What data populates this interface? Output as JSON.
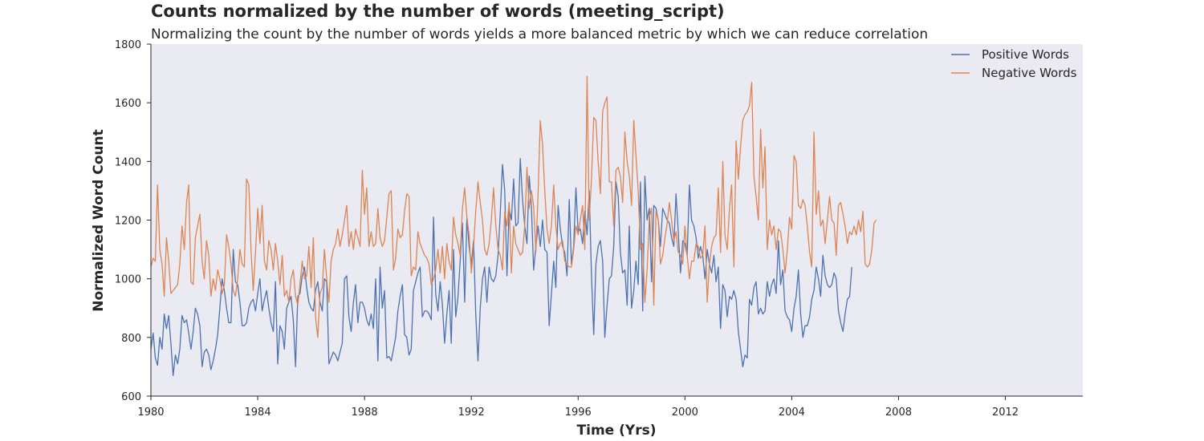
{
  "chart_data": {
    "type": "line",
    "title": "Counts normalized by the number of words (meeting_script)",
    "subtitle": "Normalizing the count by the number of words yields a more balanced metric by which we can reduce correlation",
    "xlabel": "Time (Yrs)",
    "ylabel": "Normalized Word Count",
    "xlim": [
      1980.0,
      2014.9
    ],
    "ylim": [
      600,
      1800
    ],
    "x_ticks": [
      1980,
      1984,
      1988,
      1992,
      1996,
      2000,
      2004,
      2008,
      2012
    ],
    "x_tick_labels": [
      "1980",
      "1984",
      "1988",
      "1992",
      "1996",
      "2000",
      "2004",
      "2008",
      "2012"
    ],
    "y_ticks": [
      600,
      800,
      1000,
      1200,
      1400,
      1600,
      1800
    ],
    "y_tick_labels": [
      "600",
      "800",
      "1000",
      "1200",
      "1400",
      "1600",
      "1800"
    ],
    "grid": false,
    "legend_position": "top-right",
    "x_step_months": 1,
    "x_start": "1980-01",
    "series": [
      {
        "name": "Positive Words",
        "color": "#4c72b0",
        "values": [
          760,
          815,
          730,
          705,
          800,
          760,
          880,
          830,
          875,
          780,
          670,
          740,
          710,
          760,
          875,
          850,
          860,
          815,
          760,
          820,
          900,
          880,
          840,
          700,
          750,
          760,
          740,
          690,
          720,
          760,
          810,
          900,
          1000,
          960,
          900,
          850,
          850,
          1100,
          990,
          980,
          920,
          840,
          840,
          850,
          900,
          920,
          930,
          890,
          950,
          1000,
          890,
          930,
          960,
          900,
          850,
          820,
          990,
          710,
          840,
          820,
          760,
          900,
          920,
          940,
          860,
          700,
          940,
          950,
          1010,
          1040,
          970,
          920,
          900,
          890,
          960,
          990,
          920,
          890,
          1000,
          990,
          710,
          730,
          750,
          740,
          720,
          750,
          780,
          1000,
          1010,
          870,
          820,
          920,
          980,
          850,
          920,
          920,
          900,
          860,
          840,
          880,
          830,
          1000,
          720,
          1040,
          900,
          960,
          730,
          735,
          720,
          760,
          800,
          890,
          940,
          980,
          810,
          800,
          740,
          760,
          960,
          990,
          1020,
          1040,
          870,
          890,
          890,
          880,
          860,
          1210,
          950,
          890,
          990,
          910,
          780,
          880,
          960,
          780,
          1100,
          870,
          940,
          1060,
          1190,
          920,
          1210,
          1110,
          1050,
          1130,
          880,
          720,
          900,
          1000,
          1040,
          920,
          1040,
          1000,
          990,
          1010,
          1080,
          1220,
          1390,
          1300,
          1010,
          1240,
          1200,
          1340,
          1180,
          1190,
          1410,
          1270,
          1180,
          1120,
          1350,
          1250,
          1030,
          1110,
          1180,
          1110,
          1200,
          1100,
          1090,
          840,
          950,
          1060,
          970,
          1250,
          1170,
          1110,
          1090,
          1010,
          1270,
          1050,
          1110,
          1310,
          1160,
          1170,
          1120,
          1230,
          1150,
          1300,
          1010,
          810,
          1050,
          1110,
          1130,
          1060,
          800,
          910,
          1000,
          1010,
          1110,
          1330,
          1280,
          1090,
          1020,
          1030,
          910,
          1180,
          900,
          960,
          1060,
          980,
          1330,
          890,
          1350,
          1200,
          1240,
          990,
          1250,
          1240,
          1200,
          1110,
          1240,
          1220,
          1200,
          1190,
          1140,
          1110,
          1290,
          1160,
          1020,
          1130,
          1120,
          1080,
          1320,
          1200,
          1180,
          1140,
          1070,
          1110,
          1080,
          1000,
          1100,
          1050,
          1020,
          1080,
          990,
          1040,
          830,
          980,
          960,
          870,
          940,
          930,
          960,
          930,
          820,
          760,
          700,
          740,
          730,
          930,
          910,
          970,
          990,
          880,
          900,
          880,
          890,
          990,
          940,
          980,
          1000,
          950,
          1130,
          980,
          1030,
          890,
          870,
          860,
          820,
          900,
          940,
          1030,
          880,
          800,
          840,
          840,
          870,
          930,
          960,
          1040,
          1000,
          940,
          1080,
          1010,
          980,
          970,
          980,
          1020,
          1000,
          890,
          850,
          820,
          880,
          930,
          940,
          1040
        ]
      },
      {
        "name": "Negative Words",
        "color": "#dd8452",
        "values": [
          1040,
          1070,
          1060,
          1320,
          1100,
          1050,
          940,
          1140,
          1060,
          950,
          960,
          970,
          980,
          1050,
          1180,
          1100,
          1260,
          1320,
          990,
          980,
          1140,
          1180,
          1220,
          1060,
          1000,
          1130,
          1080,
          940,
          1000,
          960,
          1030,
          1000,
          950,
          980,
          1150,
          1110,
          1050,
          960,
          940,
          1000,
          1100,
          1050,
          1040,
          1340,
          1320,
          1100,
          960,
          1090,
          1240,
          1120,
          1250,
          1060,
          1030,
          1130,
          1100,
          1030,
          1120,
          1060,
          980,
          1080,
          940,
          960,
          920,
          1000,
          1030,
          940,
          910,
          980,
          1060,
          1000,
          1010,
          1110,
          970,
          1140,
          870,
          800,
          950,
          970,
          1100,
          1000,
          920,
          1060,
          1100,
          1120,
          1170,
          1110,
          1150,
          1200,
          1250,
          1110,
          1160,
          1100,
          1170,
          1140,
          1110,
          1370,
          1220,
          1310,
          1110,
          1160,
          1110,
          1120,
          1240,
          1140,
          1110,
          1130,
          1210,
          1290,
          1300,
          1030,
          1070,
          1170,
          1140,
          1150,
          1230,
          1290,
          1280,
          1010,
          1040,
          1030,
          1160,
          1120,
          1100,
          1080,
          1070,
          1050,
          980,
          1000,
          1030,
          1100,
          1020,
          1110,
          1000,
          1120,
          1060,
          1030,
          1210,
          1150,
          1120,
          1080,
          1240,
          1310,
          1210,
          1150,
          1020,
          1110,
          1230,
          1330,
          1260,
          1200,
          1100,
          1080,
          1120,
          1200,
          1310,
          1180,
          1100,
          1080,
          1030,
          1230,
          1180,
          1260,
          1020,
          1180,
          1120,
          1100,
          1080,
          1090,
          1180,
          1380,
          1240,
          1300,
          1250,
          1090,
          1290,
          1540,
          1460,
          1300,
          1170,
          1120,
          1180,
          1320,
          1180,
          1100,
          1120,
          1130,
          1060,
          1050,
          1040,
          1040,
          1100,
          1180,
          1150,
          1200,
          1250,
          1100,
          1690,
          1200,
          1340,
          1550,
          1540,
          1400,
          1290,
          1570,
          1600,
          1620,
          1330,
          1330,
          1180,
          1370,
          1380,
          1350,
          1260,
          1500,
          1400,
          1350,
          1250,
          1540,
          1420,
          1300,
          1100,
          1120,
          920,
          1030,
          1210,
          1240,
          910,
          1230,
          1200,
          1050,
          1080,
          1140,
          1190,
          1260,
          1200,
          1130,
          1160,
          1090,
          1080,
          1050,
          1180,
          1080,
          1000,
          1060,
          1060,
          1120,
          1110,
          1070,
          1080,
          1180,
          920,
          1050,
          1110,
          1140,
          1150,
          1310,
          1090,
          1400,
          1150,
          1100,
          1240,
          1320,
          1040,
          1470,
          1340,
          1450,
          1540,
          1560,
          1570,
          1590,
          1670,
          1350,
          1280,
          1200,
          1510,
          1310,
          1450,
          1100,
          1200,
          1150,
          1180,
          1100,
          1170,
          1160,
          1100,
          1020,
          1100,
          1210,
          1170,
          1420,
          1400,
          1250,
          1240,
          1270,
          1250,
          1180,
          1090,
          1040,
          1500,
          1220,
          1300,
          1180,
          1200,
          1120,
          1200,
          1280,
          1200,
          1190,
          1080,
          1250,
          1260,
          1220,
          1180,
          1120,
          1160,
          1150,
          1180,
          1150,
          1200,
          1160,
          1230,
          1050,
          1040,
          1050,
          1100,
          1190,
          1200
        ]
      }
    ]
  }
}
